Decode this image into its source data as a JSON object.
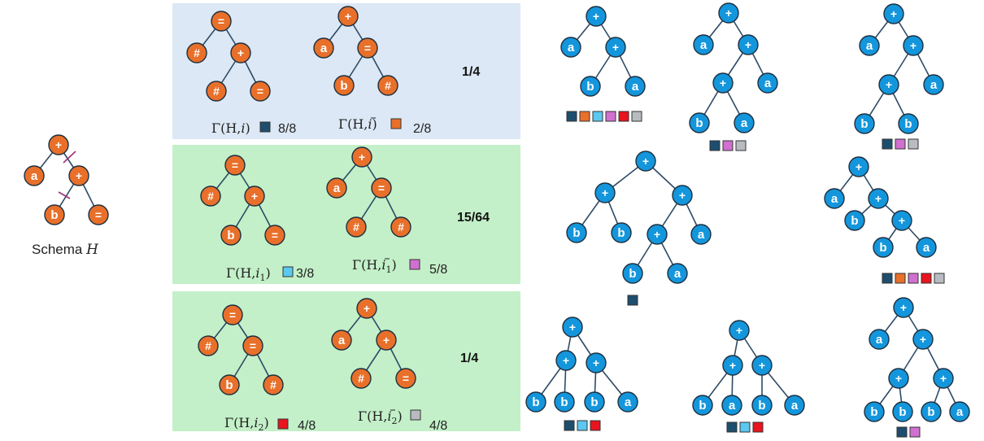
{
  "schema": {
    "label": "Schema",
    "var": "H"
  },
  "panels": [
    {
      "ratio": "1/4",
      "left": {
        "prefix": "Γ(H,",
        "sub": "i",
        "bar": false,
        "suffix": ")",
        "value": "8/8"
      },
      "right": {
        "prefix": "Γ(H,",
        "sub": "i",
        "bar": true,
        "suffix": ")",
        "value": "2/8"
      }
    },
    {
      "ratio": "15/64",
      "left": {
        "prefix": "Γ(H,",
        "sub": "i",
        "idx": "1",
        "bar": false,
        "suffix": ")",
        "value": "3/8"
      },
      "right": {
        "prefix": "Γ(H,",
        "sub": "i",
        "idx": "1",
        "bar": true,
        "suffix": ")",
        "value": "5/8"
      }
    },
    {
      "ratio": "1/4",
      "left": {
        "prefix": "Γ(H,",
        "sub": "i",
        "idx": "2",
        "bar": false,
        "suffix": ")",
        "value": "4/8"
      },
      "right": {
        "prefix": "Γ(H,",
        "sub": "i",
        "idx": "2",
        "bar": true,
        "suffix": ")",
        "value": "4/8"
      }
    }
  ],
  "colors": {
    "orange_node": "#E8702A",
    "blue_node": "#1496DC",
    "panel_blue": "#DCE8F5",
    "panel_green": "#C3F0C8",
    "sq_navy": "#1E4E6E",
    "sq_orange": "#E8702A",
    "sq_lightblue": "#5BC8F0",
    "sq_violet": "#D070D0",
    "sq_red": "#E8141E",
    "sq_gray": "#B8BCC0"
  },
  "node_labels": {
    "plus": "+",
    "eq": "=",
    "hash": "#",
    "a": "a",
    "b": "b"
  }
}
